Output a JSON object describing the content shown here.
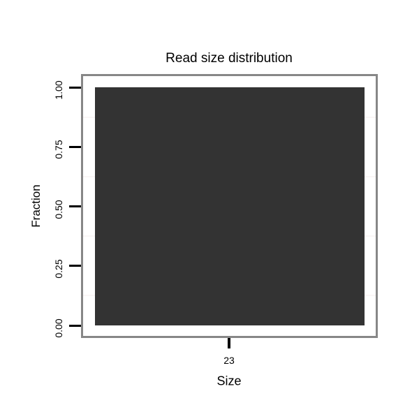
{
  "chart_data": {
    "type": "bar",
    "title": "Read size distribution",
    "xlabel": "Size",
    "ylabel": "Fraction",
    "categories": [
      "23"
    ],
    "values": [
      1.0
    ],
    "ylim": [
      0,
      1
    ],
    "ytick_labels": [
      "0.00",
      "0.25",
      "0.50",
      "0.75",
      "1.00"
    ],
    "ytick_values": [
      0,
      0.25,
      0.5,
      0.75,
      1.0
    ],
    "minor_gridline_values": [
      0.125,
      0.375,
      0.625,
      0.875
    ],
    "legend": "none",
    "grid": "minor-horizontal-only",
    "colors": {
      "bar": "#333333",
      "panel_border": "#878787",
      "gridline": "#faf6f6",
      "tick": "#000000",
      "text": "#000000",
      "background": "#ffffff"
    }
  }
}
